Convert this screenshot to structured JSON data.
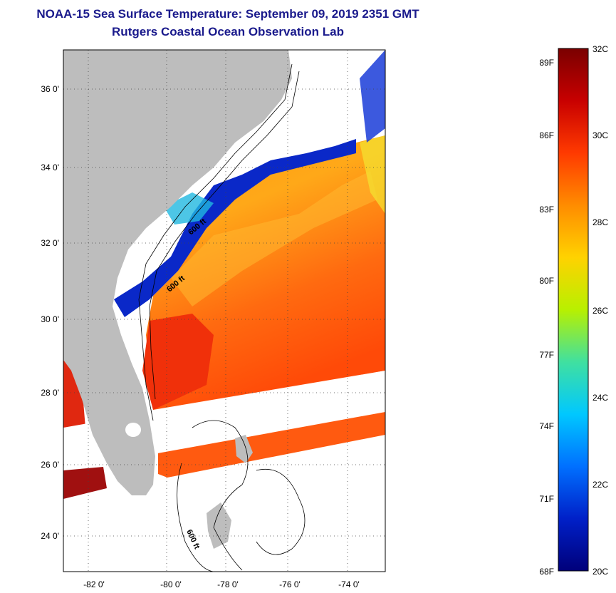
{
  "title": {
    "line1": "NOAA-15 Sea Surface Temperature:  September 09, 2019 2351 GMT",
    "line2": "Rutgers Coastal Ocean Observation Lab"
  },
  "map": {
    "lat_labels": [
      "36 0'",
      "34 0'",
      "32 0'",
      "30 0'",
      "28 0'",
      "26 0'",
      "24 0'"
    ],
    "lon_labels": [
      "-82 0'",
      "-80 0'",
      "-78 0'",
      "-76 0'",
      "-74 0'"
    ],
    "contour_labels": [
      "600 ft",
      "600 ft",
      "600 ft"
    ]
  },
  "colorbar": {
    "celsius_labels": [
      "32C",
      "30C",
      "28C",
      "26C",
      "24C",
      "22C",
      "20C"
    ],
    "fahrenheit_labels": [
      "89F",
      "86F",
      "83F",
      "80F",
      "77F",
      "74F",
      "71F",
      "68F"
    ],
    "stops": [
      "#7a0000",
      "#c80000",
      "#ff3a00",
      "#ff8c00",
      "#ffd200",
      "#b8f000",
      "#40e0a0",
      "#00c8ff",
      "#0070ff",
      "#0020c8",
      "#00007a"
    ]
  }
}
